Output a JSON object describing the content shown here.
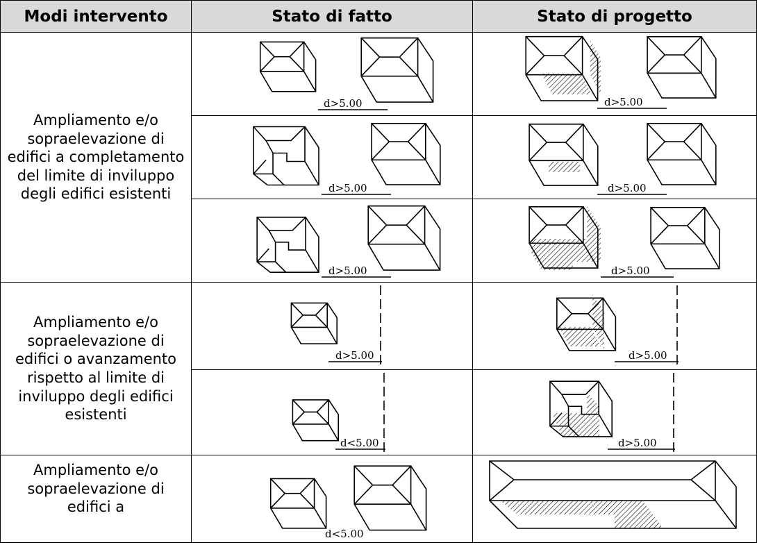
{
  "table": {
    "header": [
      "Modi intervento",
      "Stato di fatto",
      "Stato di progetto"
    ],
    "groups": [
      {
        "label": "Ampliamento e/o sopraelevazione di edifici a completamento del limite di inviluppo degli edifici esistenti",
        "rows": [
          {
            "fatto": "d>5.00",
            "progetto": "d>5.00"
          },
          {
            "fatto": "d>5.00",
            "progetto": "d>5.00"
          },
          {
            "fatto": "d>5.00",
            "progetto": "d>5.00"
          }
        ]
      },
      {
        "label": "Ampliamento e/o sopraelevazione di edifici o avanzamento rispetto al limite di inviluppo degli edifici esistenti",
        "rows": [
          {
            "fatto": "d>5.00",
            "progetto": "d>5.00"
          },
          {
            "fatto": "d<5.00",
            "progetto": "d>5.00"
          }
        ]
      },
      {
        "label": "Ampliamento e/o sopraelevazione di edifici a",
        "rows": [
          {
            "fatto": "d<5.00"
          }
        ]
      }
    ]
  }
}
